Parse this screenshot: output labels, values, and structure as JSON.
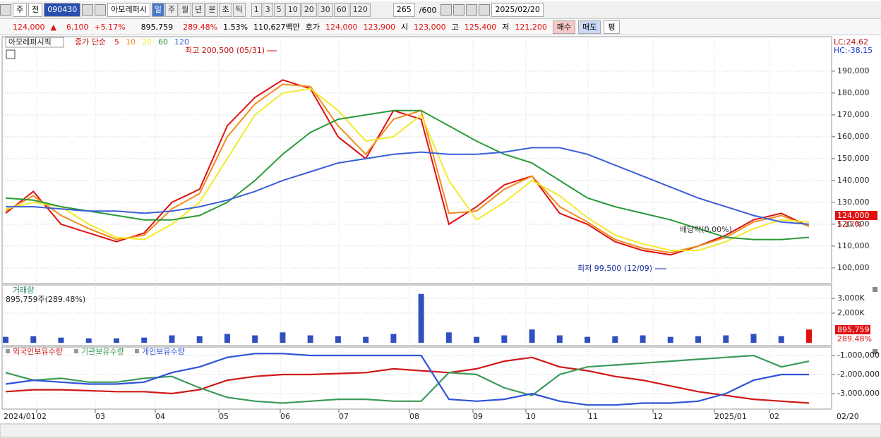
{
  "toolbar": {
    "period": "주",
    "prev": "전",
    "code": "090430",
    "name": "아모레퍼시",
    "intervals": [
      "일",
      "주",
      "월",
      "년",
      "분",
      "초",
      "틱"
    ],
    "numbers": [
      "1",
      "3",
      "5",
      "10",
      "20",
      "30",
      "60",
      "120"
    ],
    "count": "265",
    "max": "/600",
    "date": "2025/02/20"
  },
  "quote": {
    "price": "124,000",
    "arrow": "▲",
    "change": "6,100",
    "rate": "+5.17%",
    "volume": "895,759",
    "volume_rate": "289.48%",
    "turnover": "1.53%",
    "amount": "110,627백만",
    "ask_label": "호가",
    "ask": "124,000",
    "bid": "123,900",
    "open_label": "시",
    "open": "123,000",
    "high_label": "고",
    "high": "125,400",
    "low_label": "저",
    "low": "121,200",
    "buy": "매수",
    "sell": "매도",
    "avg": "평"
  },
  "x_axis_labels": [
    "2024/01",
    "02",
    "03",
    "04",
    "05",
    "06",
    "07",
    "08",
    "09",
    "10",
    "11",
    "12",
    "2025/01",
    "02",
    "02/20"
  ],
  "chart_data": [
    {
      "type": "line",
      "title": "아모레퍼시픽",
      "subtitle": "종가 단순",
      "grid": true,
      "ylim": [
        93500,
        204800
      ],
      "yticks": [
        {
          "value": 100000,
          "label": "100,000"
        },
        {
          "value": 110000,
          "label": "110,000"
        },
        {
          "value": 120000,
          "label": "120,000"
        },
        {
          "value": 130000,
          "label": "130,000"
        },
        {
          "value": 140000,
          "label": "140,000"
        },
        {
          "value": 150000,
          "label": "150,000"
        },
        {
          "value": 160000,
          "label": "160,000"
        },
        {
          "value": 170000,
          "label": "170,000"
        },
        {
          "value": 180000,
          "label": "180,000"
        },
        {
          "value": 190000,
          "label": "190,000"
        }
      ],
      "annotations": {
        "high": "최고 200,500 (05/31)",
        "low": "최저 99,500 (12/09)",
        "dividend": "배당락(0.00%)",
        "lc": "LC:24.62",
        "hc": "HC:-38.15",
        "price_tag": "124,000",
        "change_tag": "5.17%"
      },
      "series": [
        {
          "name": "5",
          "color": "#e01010",
          "values": [
            125000,
            135000,
            120000,
            116000,
            112000,
            116000,
            130000,
            136000,
            165000,
            178000,
            186000,
            182000,
            160000,
            150000,
            172000,
            168000,
            120000,
            128000,
            138000,
            142000,
            125000,
            120000,
            112000,
            108000,
            106000,
            110000,
            115000,
            122000,
            125000,
            119000
          ]
        },
        {
          "name": "10",
          "color": "#f08c1e",
          "values": [
            126000,
            133000,
            124000,
            118000,
            113000,
            115000,
            127000,
            134000,
            160000,
            175000,
            184000,
            183000,
            165000,
            152000,
            168000,
            172000,
            125000,
            126000,
            136000,
            142000,
            128000,
            121000,
            113000,
            109000,
            107000,
            110000,
            114000,
            121000,
            124000,
            119000
          ]
        },
        {
          "name": "20",
          "color": "#f2ea2a",
          "values": [
            127000,
            130000,
            128000,
            120000,
            114000,
            113000,
            120000,
            130000,
            150000,
            170000,
            180000,
            182000,
            172000,
            158000,
            160000,
            170000,
            140000,
            122000,
            130000,
            140000,
            133000,
            123000,
            115000,
            111000,
            108000,
            108000,
            112000,
            118000,
            122000,
            121000
          ]
        },
        {
          "name": "60",
          "color": "#2a9a3a",
          "values": [
            132000,
            131000,
            128000,
            126000,
            124000,
            122000,
            122000,
            124000,
            130000,
            140000,
            152000,
            162000,
            168000,
            170000,
            172000,
            172000,
            165000,
            158000,
            152000,
            148000,
            140000,
            132000,
            128000,
            125000,
            122000,
            118000,
            114000,
            113000,
            113000,
            114000
          ]
        },
        {
          "name": "120",
          "color": "#3a5fd8",
          "values": [
            128000,
            128000,
            127000,
            126000,
            126000,
            125000,
            126000,
            128000,
            131000,
            135000,
            140000,
            144000,
            148000,
            150000,
            152000,
            153000,
            152000,
            152000,
            153000,
            155000,
            155000,
            152000,
            147000,
            142000,
            137000,
            132000,
            128000,
            124000,
            121000,
            120000
          ]
        }
      ]
    },
    {
      "type": "bar",
      "title": "거래량",
      "subtitle": "895,759주(289.48%)",
      "color": "#3050c0",
      "grid": true,
      "ylim": [
        0,
        3620000
      ],
      "yticks": [
        {
          "value": 2000000,
          "label": "2,000K"
        },
        {
          "value": 3000000,
          "label": "3,000K"
        }
      ],
      "annotations": {
        "volume_tag": "895,759",
        "rate_tag": "289.48%"
      },
      "values": [
        400000,
        450000,
        350000,
        300000,
        300000,
        350000,
        500000,
        450000,
        600000,
        500000,
        700000,
        500000,
        450000,
        400000,
        600000,
        3300000,
        700000,
        400000,
        500000,
        900000,
        500000,
        400000,
        450000,
        500000,
        400000,
        450000,
        500000,
        600000,
        450000,
        895759
      ]
    },
    {
      "type": "line",
      "grid": true,
      "ylim": [
        -3815000,
        -667000
      ],
      "yticks": [
        {
          "value": -3000000,
          "label": "-3,000,000"
        },
        {
          "value": -2000000,
          "label": "-2,000,000"
        },
        {
          "value": -1000000,
          "label": "-1,000,000"
        }
      ],
      "series": [
        {
          "name": "외국인보유수량",
          "color": "#d01818",
          "values": [
            -2900000,
            -2800000,
            -2800000,
            -2850000,
            -2900000,
            -2900000,
            -3000000,
            -2800000,
            -2300000,
            -2100000,
            -2000000,
            -2000000,
            -1950000,
            -1900000,
            -1700000,
            -1800000,
            -1900000,
            -1700000,
            -1300000,
            -1100000,
            -1600000,
            -1800000,
            -2100000,
            -2300000,
            -2600000,
            -2900000,
            -3100000,
            -3300000,
            -3400000,
            -3500000
          ]
        },
        {
          "name": "기관보유수량",
          "color": "#3c9a5a",
          "values": [
            -1900000,
            -2300000,
            -2200000,
            -2400000,
            -2400000,
            -2200000,
            -2100000,
            -2700000,
            -3200000,
            -3400000,
            -3500000,
            -3400000,
            -3300000,
            -3300000,
            -3400000,
            -3400000,
            -1900000,
            -2000000,
            -2700000,
            -3100000,
            -2000000,
            -1600000,
            -1500000,
            -1400000,
            -1300000,
            -1200000,
            -1100000,
            -1000000,
            -1600000,
            -1300000
          ]
        },
        {
          "name": "개인보유수량",
          "color": "#2f52d8",
          "values": [
            -2500000,
            -2300000,
            -2400000,
            -2500000,
            -2500000,
            -2400000,
            -1900000,
            -1600000,
            -1100000,
            -900000,
            -900000,
            -1000000,
            -1000000,
            -1000000,
            -1000000,
            -1000000,
            -3300000,
            -3400000,
            -3300000,
            -3000000,
            -3400000,
            -3600000,
            -3600000,
            -3500000,
            -3500000,
            -3400000,
            -3000000,
            -2300000,
            -2000000,
            -2000000
          ]
        }
      ]
    }
  ]
}
